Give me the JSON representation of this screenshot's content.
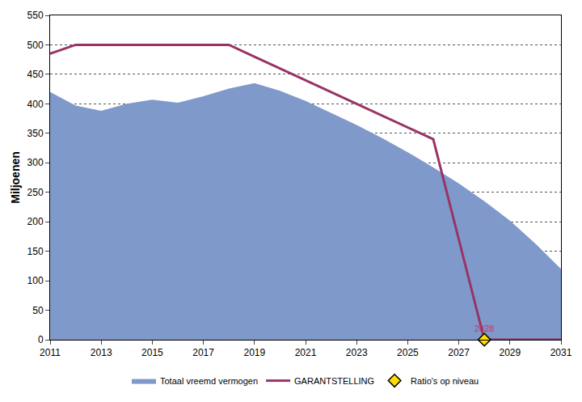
{
  "chart_data": {
    "type": "line",
    "y_label": "Miljoenen",
    "x": [
      2011,
      2012,
      2013,
      2014,
      2015,
      2016,
      2017,
      2018,
      2019,
      2020,
      2021,
      2022,
      2023,
      2024,
      2025,
      2026,
      2027,
      2028,
      2029,
      2030,
      2031
    ],
    "series": [
      {
        "name": "Totaal vreemd vermogen",
        "type": "area",
        "color": "#7f99cb",
        "values": [
          420,
          397,
          388,
          400,
          407,
          402,
          413,
          426,
          435,
          422,
          405,
          385,
          364,
          342,
          318,
          292,
          265,
          235,
          202,
          163,
          120
        ]
      },
      {
        "name": "GARANTSTELLING",
        "type": "line",
        "color": "#993366",
        "line_style": "solid",
        "values": [
          485,
          500,
          500,
          500,
          500,
          500,
          500,
          500,
          480,
          460,
          440,
          420,
          400,
          380,
          360,
          340,
          170,
          0,
          0,
          0,
          0
        ]
      },
      {
        "name": "Ratio's op niveau",
        "type": "scatter",
        "color": "#ffdd00",
        "marker": "diamond",
        "x": [
          2028
        ],
        "values": [
          0
        ]
      }
    ],
    "annotations": [
      {
        "text": "2028",
        "x": 2028,
        "y": 0,
        "color": "#cc3366"
      }
    ],
    "xlim": [
      2011,
      2031
    ],
    "xticks": [
      2011,
      2013,
      2015,
      2017,
      2019,
      2021,
      2023,
      2025,
      2027,
      2029,
      2031
    ],
    "ylim": [
      0,
      550
    ],
    "yticks": [
      0,
      50,
      100,
      150,
      200,
      250,
      300,
      350,
      400,
      450,
      500,
      550
    ],
    "grid": true,
    "legend": "bottom"
  }
}
